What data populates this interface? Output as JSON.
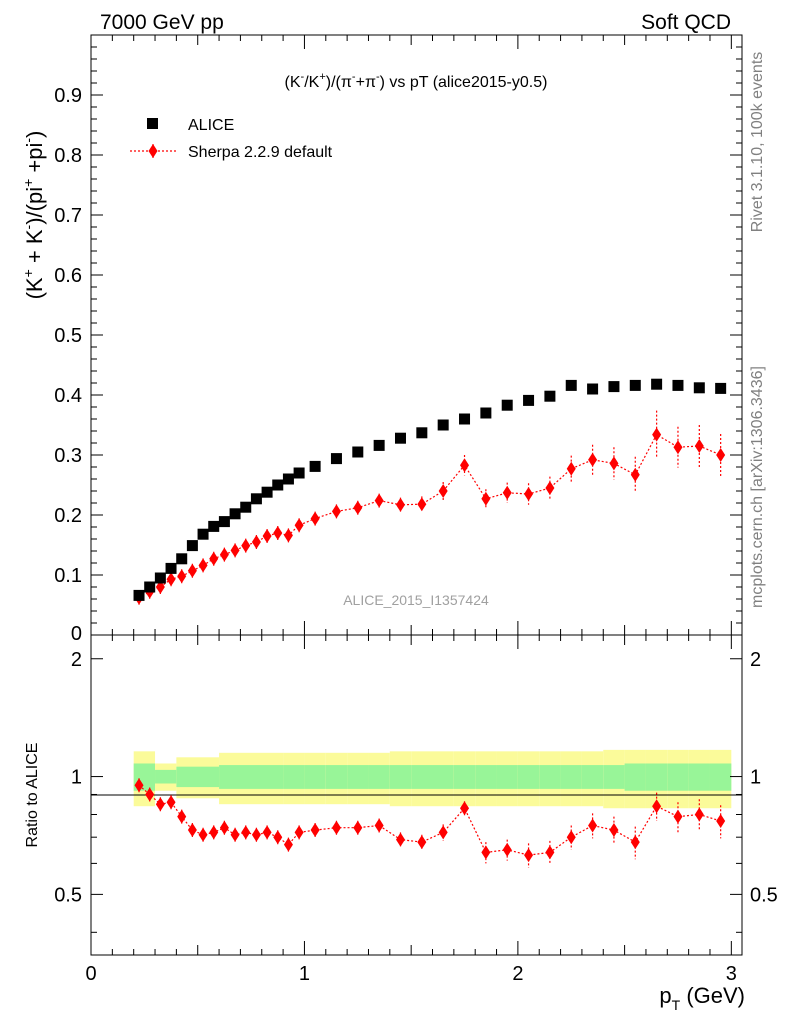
{
  "header": {
    "left": "7000 GeV pp",
    "right": "Soft QCD"
  },
  "side_labels": {
    "rivet": "Rivet 3.1.10,  100k events",
    "mcplots": "mcplots.cern.ch [arXiv:1306.3436]"
  },
  "watermark": "ALICE_2015_I1357424",
  "chart_data": {
    "type": "scatter",
    "title": "(K⁻/K⁺)/(π⁻+π⁻) vs pT (alice2015-y0.5)",
    "xlabel": "p_T (GeV)",
    "ylabel": "(K⁺ + K⁻)/(pi⁺ +pi⁻)",
    "ratio_ylabel": "Ratio to ALICE",
    "xlim": [
      0,
      3.05
    ],
    "ylim": [
      0,
      1.0
    ],
    "ratio_ylim": [
      0.35,
      2.3
    ],
    "x_ticks": [
      "0",
      "1",
      "2",
      "3"
    ],
    "x_tick_values": [
      0,
      1,
      2,
      3
    ],
    "y_ticks": [
      "0.1",
      "0.2",
      "0.3",
      "0.4",
      "0.5",
      "0.6",
      "0.7",
      "0.8",
      "0.9"
    ],
    "y_tick_values": [
      0.1,
      0.2,
      0.3,
      0.4,
      0.5,
      0.6,
      0.7,
      0.8,
      0.9
    ],
    "y_zero_label": "0",
    "ratio_ticks": [
      "0.5",
      "1",
      "2"
    ],
    "ratio_tick_values": [
      0.5,
      1,
      2
    ],
    "legend": {
      "position": "top-left",
      "entries": [
        "ALICE",
        "Sherpa 2.2.9 default"
      ]
    },
    "x": [
      0.225,
      0.275,
      0.325,
      0.375,
      0.425,
      0.475,
      0.525,
      0.575,
      0.625,
      0.675,
      0.725,
      0.775,
      0.825,
      0.875,
      0.925,
      0.975,
      1.05,
      1.15,
      1.25,
      1.35,
      1.45,
      1.55,
      1.65,
      1.75,
      1.85,
      1.95,
      2.05,
      2.15,
      2.25,
      2.35,
      2.45,
      2.55,
      2.65,
      2.75,
      2.85,
      2.95
    ],
    "series": [
      {
        "name": "ALICE",
        "marker": "square",
        "color": "#000000",
        "values": [
          0.066,
          0.08,
          0.095,
          0.111,
          0.127,
          0.149,
          0.168,
          0.181,
          0.189,
          0.202,
          0.213,
          0.227,
          0.238,
          0.25,
          0.26,
          0.27,
          0.281,
          0.294,
          0.305,
          0.316,
          0.328,
          0.337,
          0.35,
          0.36,
          0.37,
          0.383,
          0.391,
          0.398,
          0.416,
          0.41,
          0.414,
          0.416,
          0.418,
          0.416,
          0.412,
          0.411
        ]
      },
      {
        "name": "Sherpa 2.2.9 default",
        "marker": "diamond",
        "color": "#ff0000",
        "values": [
          0.062,
          0.072,
          0.08,
          0.093,
          0.098,
          0.107,
          0.116,
          0.127,
          0.134,
          0.141,
          0.149,
          0.155,
          0.165,
          0.17,
          0.166,
          0.183,
          0.194,
          0.206,
          0.212,
          0.224,
          0.217,
          0.218,
          0.24,
          0.283,
          0.227,
          0.237,
          0.235,
          0.245,
          0.277,
          0.292,
          0.286,
          0.267,
          0.334,
          0.313,
          0.315,
          0.3
        ],
        "errors": [
          0.004,
          0.004,
          0.004,
          0.004,
          0.004,
          0.004,
          0.004,
          0.004,
          0.005,
          0.005,
          0.005,
          0.005,
          0.006,
          0.006,
          0.006,
          0.007,
          0.008,
          0.009,
          0.01,
          0.011,
          0.012,
          0.013,
          0.015,
          0.017,
          0.016,
          0.017,
          0.018,
          0.019,
          0.022,
          0.025,
          0.027,
          0.03,
          0.04,
          0.034,
          0.035,
          0.035
        ]
      }
    ],
    "ratio": {
      "values": [
        0.95,
        0.9,
        0.85,
        0.86,
        0.79,
        0.73,
        0.71,
        0.72,
        0.74,
        0.71,
        0.72,
        0.71,
        0.72,
        0.7,
        0.67,
        0.72,
        0.73,
        0.74,
        0.74,
        0.75,
        0.69,
        0.68,
        0.72,
        0.83,
        0.64,
        0.65,
        0.63,
        0.64,
        0.7,
        0.75,
        0.73,
        0.68,
        0.84,
        0.79,
        0.8,
        0.77
      ],
      "errors": [
        0.01,
        0.01,
        0.01,
        0.01,
        0.01,
        0.01,
        0.01,
        0.01,
        0.01,
        0.01,
        0.01,
        0.015,
        0.015,
        0.015,
        0.02,
        0.02,
        0.02,
        0.02,
        0.025,
        0.025,
        0.03,
        0.03,
        0.035,
        0.035,
        0.04,
        0.04,
        0.045,
        0.045,
        0.05,
        0.055,
        0.06,
        0.065,
        0.07,
        0.07,
        0.075,
        0.075
      ],
      "band_edges": [
        0.2,
        0.3,
        0.4,
        0.6,
        0.9,
        1.0,
        1.1,
        1.2,
        1.3,
        1.4,
        1.5,
        1.6,
        1.7,
        1.8,
        1.9,
        2.0,
        2.1,
        2.2,
        2.3,
        2.4,
        2.5,
        2.6,
        2.7,
        2.8,
        2.9,
        3.0
      ],
      "band_inner": [
        0.08,
        0.04,
        0.06,
        0.07,
        0.07,
        0.07,
        0.07,
        0.07,
        0.07,
        0.07,
        0.07,
        0.07,
        0.07,
        0.07,
        0.07,
        0.07,
        0.07,
        0.07,
        0.07,
        0.07,
        0.08,
        0.08,
        0.08,
        0.08,
        0.08
      ],
      "band_outer": [
        0.16,
        0.08,
        0.12,
        0.15,
        0.15,
        0.15,
        0.15,
        0.15,
        0.15,
        0.16,
        0.16,
        0.16,
        0.16,
        0.16,
        0.16,
        0.16,
        0.16,
        0.16,
        0.16,
        0.17,
        0.17,
        0.17,
        0.17,
        0.17,
        0.17
      ],
      "inner_color": "#98f598",
      "outer_color": "#fbfb9a"
    }
  }
}
